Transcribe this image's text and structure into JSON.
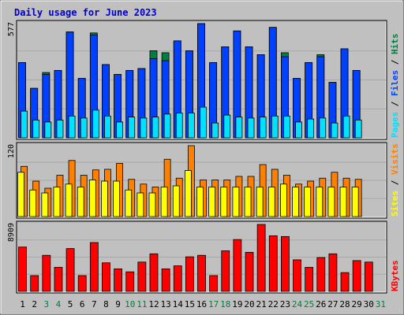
{
  "chart_data": {
    "type": "bar",
    "title": "Daily usage for June 2023",
    "categories": [
      "1",
      "2",
      "3",
      "4",
      "5",
      "6",
      "7",
      "8",
      "9",
      "10",
      "11",
      "12",
      "13",
      "14",
      "15",
      "16",
      "17",
      "18",
      "19",
      "20",
      "21",
      "22",
      "23",
      "24",
      "25",
      "26",
      "27",
      "28",
      "29",
      "30",
      "31"
    ],
    "weekend_days": [
      "3",
      "4",
      "10",
      "11",
      "17",
      "18",
      "24",
      "25",
      "31"
    ],
    "panels": [
      {
        "id": "hits-files-pages",
        "ymax_label": "577",
        "ymax": 577,
        "side_labels": [
          "Pages",
          "/",
          "Files",
          "/",
          "Hits"
        ],
        "series": [
          {
            "name": "Hits",
            "color": "#008040",
            "values": [
              380,
              250,
              330,
              340,
              535,
              300,
              530,
              370,
              320,
              340,
              350,
              440,
              430,
              490,
              440,
              577,
              380,
              460,
              540,
              460,
              420,
              558,
              430,
              300,
              380,
              420,
              280,
              450,
              340,
              null,
              null
            ]
          },
          {
            "name": "Files",
            "color": "#0040ff",
            "values": [
              380,
              250,
              320,
              340,
              535,
              300,
              520,
              370,
              320,
              340,
              350,
              400,
              390,
              490,
              440,
              577,
              380,
              460,
              540,
              460,
              420,
              558,
              410,
              300,
              380,
              410,
              280,
              450,
              340,
              null,
              null
            ]
          },
          {
            "name": "Pages",
            "color": "#00e0ff",
            "values": [
              135,
              90,
              80,
              90,
              110,
              100,
              140,
              110,
              80,
              105,
              100,
              105,
              120,
              125,
              125,
              155,
              75,
              115,
              105,
              100,
              105,
              110,
              110,
              80,
              95,
              100,
              75,
              110,
              90,
              null,
              null
            ]
          }
        ]
      },
      {
        "id": "visits-sites",
        "ymax_label": "120",
        "ymax": 120,
        "side_labels": [
          "Sites",
          "/",
          "Visits"
        ],
        "series": [
          {
            "name": "Visits",
            "color": "#ff8000",
            "values": [
              85,
              60,
              48,
              70,
              95,
              70,
              79,
              80,
              90,
              63,
              55,
              50,
              97,
              65,
              120,
              62,
              62,
              62,
              68,
              68,
              88,
              80,
              70,
              55,
              60,
              65,
              75,
              65,
              63,
              null,
              null
            ]
          },
          {
            "name": "Sites",
            "color": "#ffff00",
            "values": [
              75,
              45,
              40,
              50,
              55,
              50,
              62,
              60,
              60,
              45,
              40,
              40,
              50,
              52,
              78,
              50,
              50,
              50,
              50,
              50,
              50,
              50,
              55,
              50,
              50,
              50,
              50,
              50,
              50,
              null,
              null
            ]
          }
        ]
      },
      {
        "id": "kbytes",
        "ymax_label": "8909",
        "ymax": 8909,
        "side_labels": [
          "KBytes"
        ],
        "series": [
          {
            "name": "KBytes",
            "color": "#ff0000",
            "values": [
              5900,
              2100,
              4800,
              3200,
              5700,
              2100,
              6500,
              3800,
              3000,
              2600,
              3900,
              5000,
              3000,
              3400,
              4600,
              4800,
              2100,
              5400,
              6900,
              5200,
              8909,
              7400,
              7300,
              4200,
              3200,
              4500,
              5000,
              2500,
              4100,
              3900,
              null
            ]
          }
        ]
      }
    ]
  }
}
